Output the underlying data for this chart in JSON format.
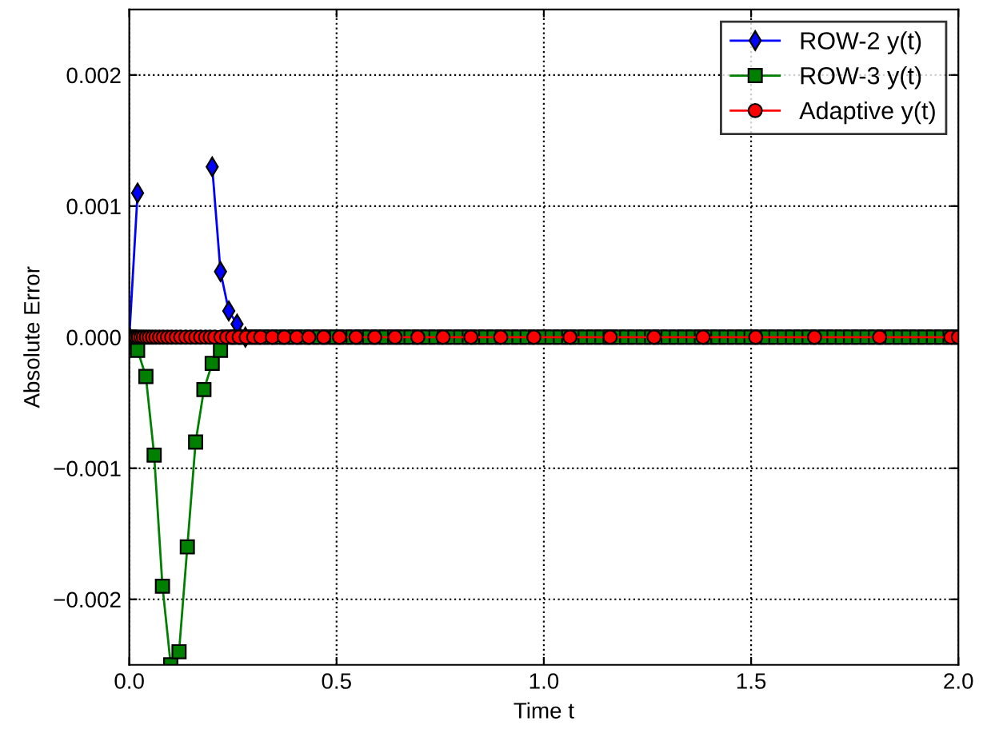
{
  "chart_data": {
    "type": "line",
    "xlabel": "Time t",
    "ylabel": "Absolute Error",
    "xlim": [
      0,
      2
    ],
    "ylim": [
      -0.0025,
      0.0025
    ],
    "xticks": [
      {
        "value": 0,
        "label": "0.0"
      },
      {
        "value": 0.5,
        "label": "0.5"
      },
      {
        "value": 1,
        "label": "1.0"
      },
      {
        "value": 1.5,
        "label": "1.5"
      },
      {
        "value": 2,
        "label": "2.0"
      }
    ],
    "yticks": [
      {
        "value": -0.002,
        "label": "−0.002"
      },
      {
        "value": -0.001,
        "label": "−0.001"
      },
      {
        "value": 0,
        "label": "0.000"
      },
      {
        "value": 0.001,
        "label": "0.001"
      },
      {
        "value": 0.002,
        "label": "0.002"
      }
    ],
    "grid": true,
    "legend": "top right",
    "line_style": "solid",
    "x": [
      0,
      0.02,
      0.04,
      0.06,
      0.08,
      0.1,
      0.12,
      0.14,
      0.16,
      0.18,
      0.2,
      0.22,
      0.24,
      0.26,
      0.28,
      0.3,
      0.32,
      0.34,
      0.36,
      0.38,
      0.4,
      0.42,
      0.44,
      0.46,
      0.48,
      0.5,
      0.52,
      0.54,
      0.56,
      0.58,
      0.6,
      0.62,
      0.64,
      0.66,
      0.68,
      0.7,
      0.72,
      0.74,
      0.76,
      0.78,
      0.8,
      0.82,
      0.84,
      0.86,
      0.88,
      0.9,
      0.92,
      0.94,
      0.96,
      0.98,
      1,
      1.02,
      1.04,
      1.06,
      1.08,
      1.1,
      1.12,
      1.14,
      1.16,
      1.18,
      1.2,
      1.22,
      1.24,
      1.26,
      1.28,
      1.3,
      1.32,
      1.34,
      1.36,
      1.38,
      1.4,
      1.42,
      1.44,
      1.46,
      1.48,
      1.5,
      1.52,
      1.54,
      1.56,
      1.58,
      1.6,
      1.62,
      1.64,
      1.66,
      1.68,
      1.7,
      1.72,
      1.74,
      1.76,
      1.78,
      1.8,
      1.82,
      1.84,
      1.86,
      1.88,
      1.9,
      1.92,
      1.94,
      1.96,
      1.98,
      2
    ],
    "series": [
      {
        "name": "ROW-2 y(t)",
        "color": "#0000ff",
        "marker": "diamond",
        "values": [
          0,
          0.0011,
          null,
          null,
          null,
          null,
          null,
          null,
          null,
          null,
          0.0013,
          0.0005,
          0.0002,
          0.0001,
          0,
          null,
          null,
          null,
          null,
          null,
          null,
          null,
          null,
          null,
          null,
          null,
          null,
          null,
          null,
          null,
          null,
          null,
          null,
          null,
          null,
          null,
          null,
          null,
          null,
          null,
          null,
          null,
          null,
          null,
          null,
          null,
          null,
          null,
          null,
          null,
          null,
          null,
          null,
          null,
          null,
          null,
          null,
          null,
          null,
          null,
          null,
          null,
          null,
          null,
          null,
          null,
          null,
          null,
          null,
          null,
          null,
          null,
          null,
          null,
          null,
          null,
          null,
          null,
          null,
          null,
          null,
          null,
          null,
          null,
          null,
          null,
          null,
          null,
          null,
          null,
          null,
          null,
          null,
          null,
          null,
          null,
          null,
          null,
          null,
          null,
          null
        ]
      },
      {
        "name": "ROW-3 y(t)",
        "color": "#008000",
        "marker": "square",
        "values": [
          0,
          -0.0001,
          -0.0003,
          -0.0009,
          -0.0019,
          -0.0025,
          -0.0024,
          -0.0016,
          -0.0008,
          -0.0004,
          -0.0002,
          -0.0001,
          0,
          0,
          0,
          0,
          0,
          0,
          0,
          0,
          0,
          0,
          0,
          0,
          0,
          0,
          0,
          0,
          0,
          0,
          0,
          0,
          0,
          0,
          0,
          0,
          0,
          0,
          0,
          0,
          0,
          0,
          0,
          0,
          0,
          0,
          0,
          0,
          0,
          0,
          0,
          0,
          0,
          0,
          0,
          0,
          0,
          0,
          0,
          0,
          0,
          0,
          0,
          0,
          0,
          0,
          0,
          0,
          0,
          0,
          0,
          0,
          0,
          0,
          0,
          0,
          0,
          0,
          0,
          0,
          0,
          0,
          0,
          0,
          0,
          0,
          0,
          0,
          0,
          0,
          0,
          0,
          0,
          0,
          0,
          0,
          0,
          0,
          0,
          0,
          0
        ]
      },
      {
        "name": "Adaptive y(t)",
        "color": "#ff0000",
        "marker": "circle",
        "x": [
          0,
          0.004,
          0.008,
          0.012,
          0.017,
          0.022,
          0.028,
          0.034,
          0.041,
          0.048,
          0.056,
          0.064,
          0.073,
          0.082,
          0.092,
          0.102,
          0.113,
          0.124,
          0.136,
          0.148,
          0.16,
          0.172,
          0.184,
          0.195,
          0.206,
          0.221,
          0.235,
          0.249,
          0.265,
          0.282,
          0.3,
          0.317,
          0.345,
          0.374,
          0.404,
          0.433,
          0.469,
          0.507,
          0.547,
          0.592,
          0.641,
          0.696,
          0.757,
          0.824,
          0.896,
          0.976,
          1.063,
          1.16,
          1.266,
          1.384,
          1.511,
          1.653,
          1.81,
          1.982,
          2
        ],
        "values": [
          0,
          0,
          0,
          0,
          0,
          0,
          0,
          0,
          0,
          0,
          0,
          0,
          0,
          0,
          0,
          0,
          0,
          0,
          0,
          0,
          0,
          0,
          0,
          0,
          0,
          0,
          0,
          0,
          0,
          0,
          0,
          0,
          0,
          0,
          0,
          0,
          0,
          0,
          0,
          0,
          0,
          0,
          0,
          0,
          0,
          0,
          0,
          0,
          0,
          0,
          0,
          0,
          0,
          0,
          0
        ]
      }
    ]
  }
}
